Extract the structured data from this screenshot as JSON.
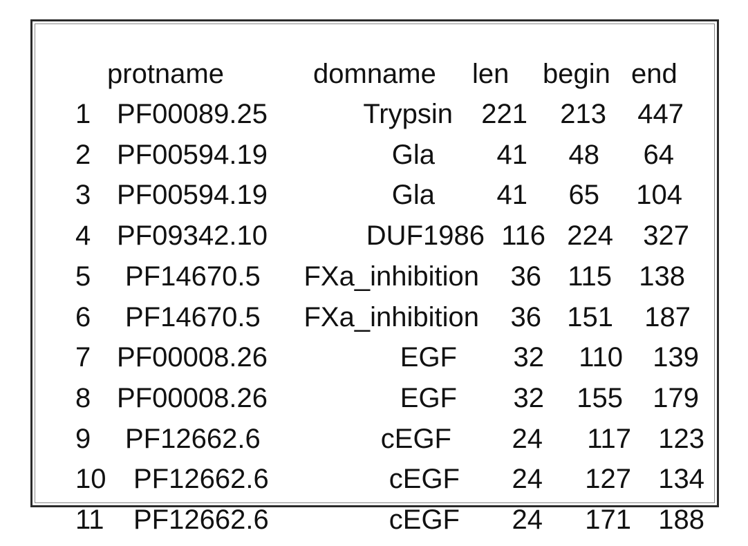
{
  "table": {
    "headers": {
      "protname": "protname",
      "domname": "domname",
      "len": "len",
      "begin": "begin",
      "end": "end"
    },
    "rows": [
      {
        "idx": "1",
        "protname": "PF00089.25",
        "domname": "Trypsin",
        "len": "221",
        "begin": "213",
        "end": "447"
      },
      {
        "idx": "2",
        "protname": "PF00594.19",
        "domname": "Gla",
        "len": "41",
        "begin": "48",
        "end": "64"
      },
      {
        "idx": "3",
        "protname": "PF00594.19",
        "domname": "Gla",
        "len": "41",
        "begin": "65",
        "end": "104"
      },
      {
        "idx": "4",
        "protname": "PF09342.10",
        "domname": "DUF1986",
        "len": "116",
        "begin": "224",
        "end": "327"
      },
      {
        "idx": "5",
        "protname": "PF14670.5",
        "domname": "FXa_inhibition",
        "len": "36",
        "begin": "115",
        "end": "138"
      },
      {
        "idx": "6",
        "protname": "PF14670.5",
        "domname": "FXa_inhibition",
        "len": "36",
        "begin": "151",
        "end": "187"
      },
      {
        "idx": "7",
        "protname": "PF00008.26",
        "domname": "EGF",
        "len": "32",
        "begin": "110",
        "end": "139"
      },
      {
        "idx": "8",
        "protname": "PF00008.26",
        "domname": "EGF",
        "len": "32",
        "begin": "155",
        "end": "179"
      },
      {
        "idx": "9",
        "protname": "PF12662.6",
        "domname": "cEGF",
        "len": "24",
        "begin": "117",
        "end": "123"
      },
      {
        "idx": "10",
        "protname": "PF12662.6",
        "domname": "cEGF",
        "len": "24",
        "begin": "127",
        "end": "134"
      },
      {
        "idx": "11",
        "protname": "PF12662.6",
        "domname": "cEGF",
        "len": "24",
        "begin": "171",
        "end": "188"
      }
    ]
  }
}
